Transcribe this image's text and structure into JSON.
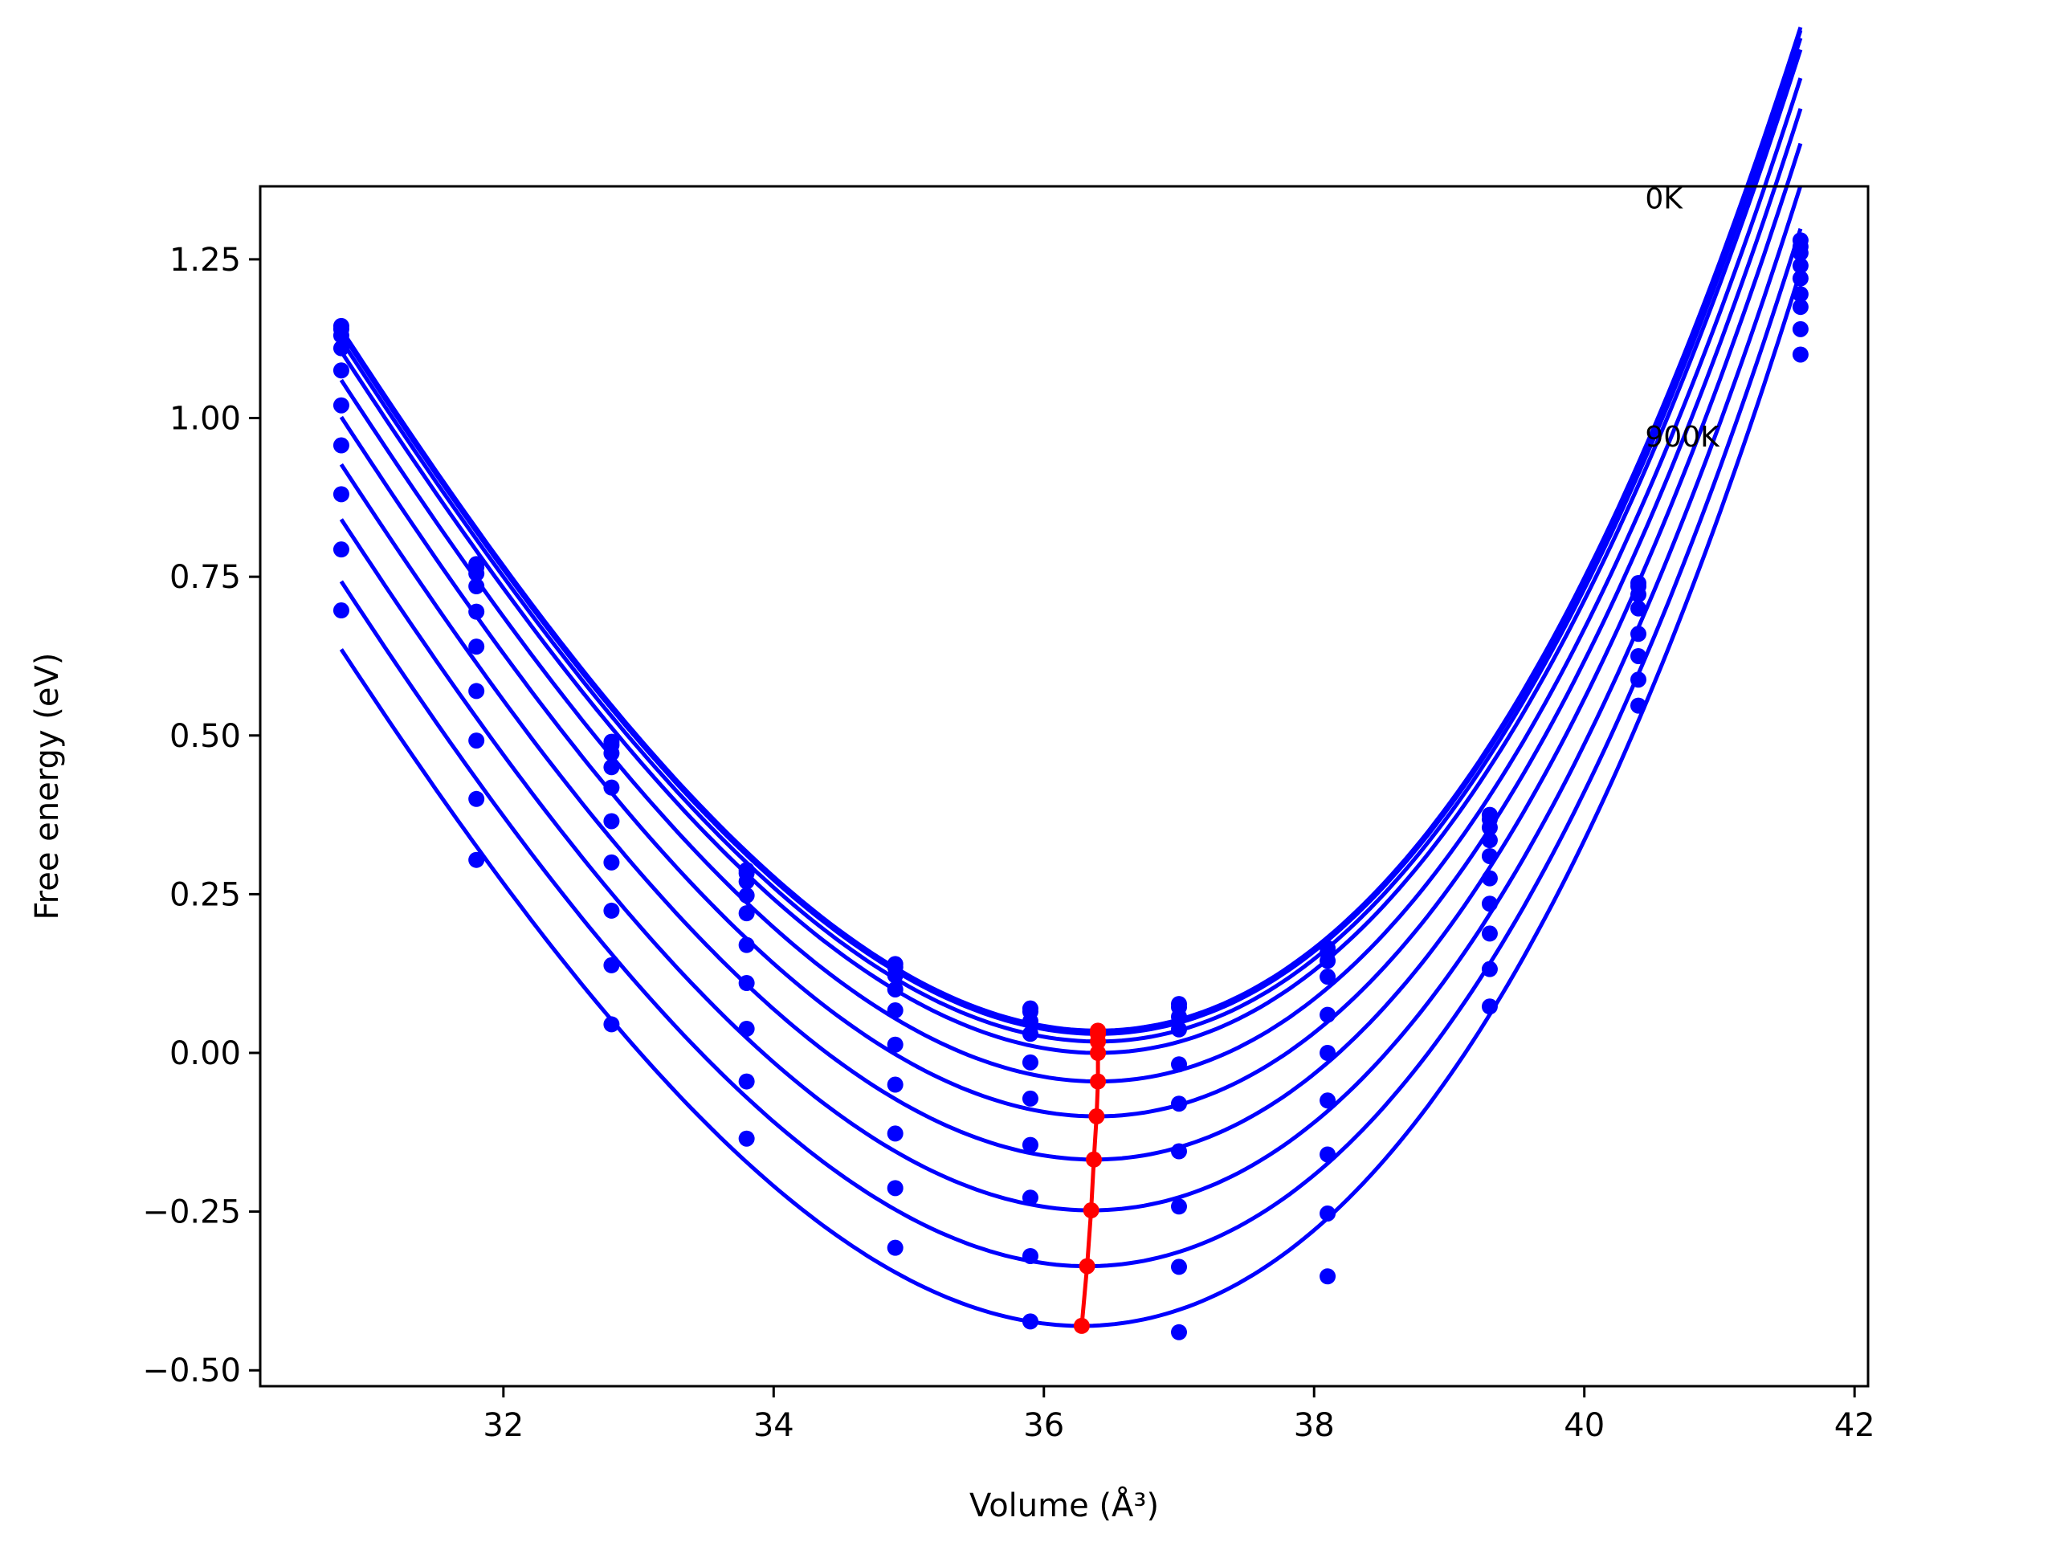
{
  "chart_data": {
    "type": "line",
    "title": "",
    "xlabel": "Volume (Å³)",
    "ylabel": "Free energy (eV)",
    "xlim": [
      30.2,
      42.1
    ],
    "ylim": [
      -0.525,
      1.365
    ],
    "xticks": [
      32,
      34,
      36,
      38,
      40,
      42
    ],
    "yticks": [
      -0.5,
      -0.25,
      0.0,
      0.25,
      0.5,
      0.75,
      1.0,
      1.25
    ],
    "xtick_labels": [
      "32",
      "34",
      "36",
      "38",
      "40",
      "42"
    ],
    "ytick_labels": [
      "−0.50",
      "−0.25",
      "0.00",
      "0.25",
      "0.50",
      "0.75",
      "1.00",
      "1.25"
    ],
    "grid": false,
    "legend": "none",
    "x": [
      30.8,
      31.8,
      32.8,
      33.8,
      34.9,
      35.9,
      37.0,
      38.1,
      39.3,
      40.4,
      41.6
    ],
    "colors": {
      "fit": "#0000ff",
      "points": "#0000ff",
      "minimum": "#ff0000"
    },
    "series": [
      {
        "data": [
          1.145,
          0.77,
          0.49,
          0.288,
          0.14,
          0.07,
          0.077,
          0.165,
          0.375,
          0.74,
          1.28
        ],
        "fit": {
          "V0": 36.4,
          "E0": 0.035,
          "a": 0.04727,
          "b": 0.00215
        }
      },
      {
        "data": [
          1.14,
          0.765,
          0.485,
          0.283,
          0.135,
          0.065,
          0.072,
          0.158,
          0.368,
          0.735,
          1.27
        ],
        "fit": {
          "V0": 36.4,
          "E0": 0.03,
          "a": 0.04727,
          "b": 0.00215
        }
      },
      {
        "data": [
          1.13,
          0.755,
          0.472,
          0.27,
          0.122,
          0.05,
          0.057,
          0.145,
          0.355,
          0.722,
          1.26
        ],
        "fit": {
          "V0": 36.4,
          "E0": 0.018,
          "a": 0.04727,
          "b": 0.00215
        }
      },
      {
        "data": [
          1.11,
          0.735,
          0.45,
          0.248,
          0.1,
          0.03,
          0.037,
          0.12,
          0.335,
          0.7,
          1.24
        ],
        "fit": {
          "V0": 36.4,
          "E0": 0.0,
          "a": 0.04727,
          "b": 0.00215
        }
      },
      {
        "data": [
          1.075,
          0.695,
          0.418,
          0.22,
          0.067,
          -0.015,
          -0.018,
          0.06,
          0.31,
          0.66,
          1.22
        ],
        "fit": {
          "V0": 36.4,
          "E0": -0.045,
          "a": 0.04727,
          "b": 0.00215
        }
      },
      {
        "data": [
          1.02,
          0.64,
          0.365,
          0.17,
          0.013,
          -0.072,
          -0.08,
          0.0,
          0.275,
          0.625,
          1.195
        ],
        "fit": {
          "V0": 36.39,
          "E0": -0.1,
          "a": 0.04727,
          "b": 0.00215
        }
      },
      {
        "data": [
          0.957,
          0.57,
          0.3,
          0.11,
          -0.05,
          -0.145,
          -0.155,
          -0.075,
          0.235,
          0.588,
          1.175
        ],
        "fit": {
          "V0": 36.37,
          "E0": -0.168,
          "a": 0.04727,
          "b": 0.00215
        }
      },
      {
        "data": [
          0.88,
          0.492,
          0.224,
          0.038,
          -0.127,
          -0.228,
          -0.242,
          -0.16,
          0.188,
          0.547,
          1.14
        ],
        "fit": {
          "V0": 36.35,
          "E0": -0.248,
          "a": 0.04727,
          "b": 0.00215
        }
      },
      {
        "data": [
          0.793,
          0.4,
          0.138,
          -0.045,
          -0.213,
          -0.32,
          -0.337,
          -0.253,
          0.132,
          null,
          1.1
        ],
        "fit": {
          "V0": 36.32,
          "E0": -0.336,
          "a": 0.04727,
          "b": 0.00215
        }
      },
      {
        "data": [
          0.697,
          0.304,
          0.045,
          -0.135,
          -0.307,
          -0.423,
          -0.44,
          -0.352,
          0.073,
          null,
          null
        ],
        "fit": {
          "V0": 36.28,
          "E0": -0.43,
          "a": 0.04727,
          "b": 0.00215
        }
      }
    ],
    "minimum_curve": {
      "x": [
        36.4,
        36.4,
        36.4,
        36.4,
        36.4,
        36.39,
        36.37,
        36.35,
        36.32,
        36.28
      ],
      "y": [
        0.035,
        0.03,
        0.018,
        0.0,
        -0.045,
        -0.1,
        -0.168,
        -0.248,
        -0.336,
        -0.43
      ]
    },
    "annotations": [
      {
        "text": "0K",
        "x": 40.45,
        "y": 1.33
      },
      {
        "text": "900K",
        "x": 40.45,
        "y": 0.955
      }
    ]
  }
}
